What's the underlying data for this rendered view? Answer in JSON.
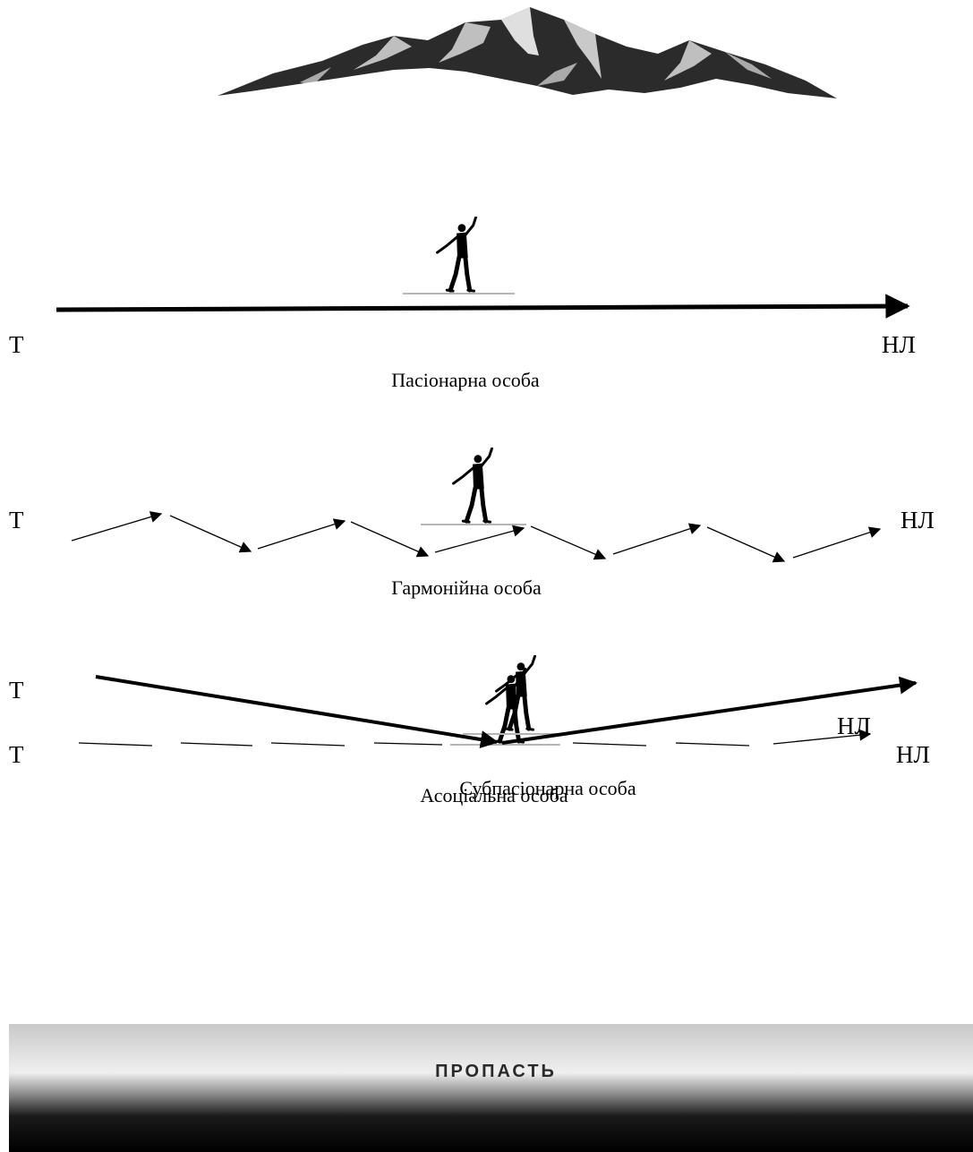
{
  "icons": {
    "mountain": "mountain-icon",
    "walker": "tightrope-walker-icon"
  },
  "rows": [
    {
      "id": "passionate",
      "start": "Т",
      "end": "НЛ",
      "caption": "Пасіонарна особа",
      "path": "straight-arrow"
    },
    {
      "id": "harmonious",
      "start": "Т",
      "end": "НЛ",
      "caption": "Гармонійна особа",
      "path": "zigzag-arrows"
    },
    {
      "id": "asocial",
      "start": "Т",
      "end": "НЛ",
      "caption": "Асоціальна особа",
      "path": "dashed-line"
    },
    {
      "id": "subpassionate",
      "start": "Т",
      "end": "НЛ",
      "caption": "Субпасіонарна особа",
      "path": "v-shaped-arrows"
    }
  ],
  "abyss": {
    "label": "ПРОПАСТЬ"
  },
  "colors": {
    "ink": "#000000",
    "rope": "#b5b5b5",
    "mountain": "#2b2b2b"
  }
}
